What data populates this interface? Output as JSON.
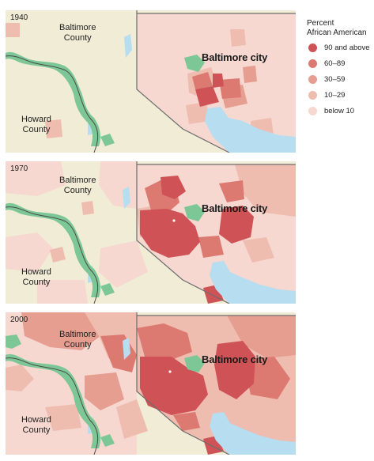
{
  "legend": {
    "title": [
      "Percent",
      "African American"
    ],
    "items": [
      {
        "label": "90 and above",
        "color": "#cf5356"
      },
      {
        "label": "60–89",
        "color": "#dc7a72"
      },
      {
        "label": "30–59",
        "color": "#e69e91"
      },
      {
        "label": "10–29",
        "color": "#efbcb0"
      },
      {
        "label": "below 10",
        "color": "#f6d8d0"
      }
    ]
  },
  "colors": {
    "county_background": "#f1ecd6",
    "park": "#7cc795",
    "water": "#b6ddf0",
    "city_boundary": "#6d6d6d"
  },
  "maps": [
    {
      "year": "1940",
      "baltimore_county": [
        "Baltimore",
        "County"
      ],
      "howard_county": [
        "Howard",
        "County"
      ],
      "city": "Baltimore city"
    },
    {
      "year": "1970",
      "baltimore_county": [
        "Baltimore",
        "County"
      ],
      "howard_county": [
        "Howard",
        "County"
      ],
      "city": "Baltimore city"
    },
    {
      "year": "2000",
      "baltimore_county": [
        "Baltimore",
        "County"
      ],
      "howard_county": [
        "Howard",
        "County"
      ],
      "city": "Baltimore city"
    }
  ]
}
